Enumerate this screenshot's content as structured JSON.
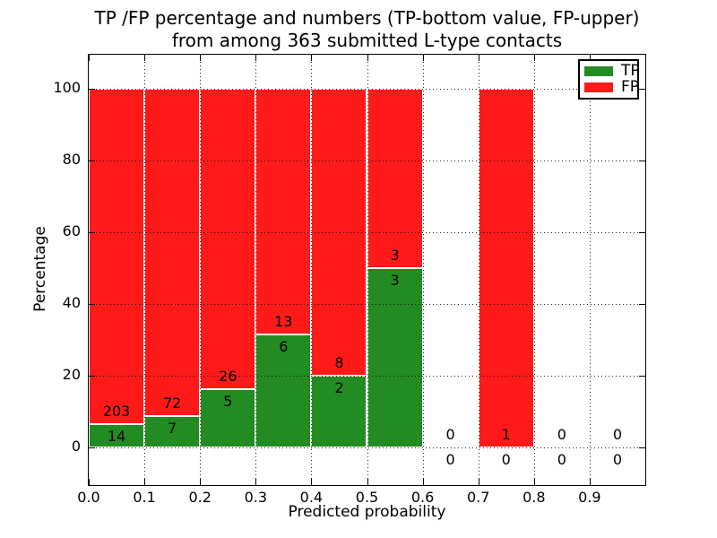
{
  "title": {
    "line1": "TP /FP percentage and numbers (TP-bottom value, FP-upper)",
    "line2": "from among 363 submitted L-type contacts"
  },
  "axes": {
    "xlabel": "Predicted probability",
    "ylabel": "Percentage",
    "xtick_labels": [
      "0.0",
      "0.1",
      "0.2",
      "0.3",
      "0.4",
      "0.5",
      "0.6",
      "0.7",
      "0.8",
      "0.9"
    ],
    "ytick_values": [
      0,
      20,
      40,
      60,
      80,
      100
    ]
  },
  "legend": {
    "items": [
      {
        "label": "TP",
        "color": "#228b22"
      },
      {
        "label": "FP",
        "color": "#ff1a1a"
      }
    ]
  },
  "chart_data": {
    "type": "bar",
    "stacked": true,
    "normalized_to_percent": true,
    "title": "TP /FP percentage and numbers (TP-bottom value, FP-upper) from among 363 submitted L-type contacts",
    "xlabel": "Predicted probability",
    "ylabel": "Percentage",
    "xlim": [
      0.0,
      1.0
    ],
    "ylim": [
      -10,
      110
    ],
    "grid": true,
    "grid_style": "dotted-black-above-bars",
    "legend_position": "upper right",
    "bin_width": 0.1,
    "total_contacts": 363,
    "colors": {
      "tp": "#228b22",
      "fp": "#ff1a1a",
      "bar_edge": "#ffffff"
    },
    "bins": [
      {
        "x0": 0.0,
        "x1": 0.1,
        "tp": 14,
        "fp": 203
      },
      {
        "x0": 0.1,
        "x1": 0.2,
        "tp": 7,
        "fp": 72
      },
      {
        "x0": 0.2,
        "x1": 0.3,
        "tp": 5,
        "fp": 26
      },
      {
        "x0": 0.3,
        "x1": 0.4,
        "tp": 6,
        "fp": 13
      },
      {
        "x0": 0.4,
        "x1": 0.5,
        "tp": 2,
        "fp": 8
      },
      {
        "x0": 0.5,
        "x1": 0.6,
        "tp": 3,
        "fp": 3
      },
      {
        "x0": 0.6,
        "x1": 0.7,
        "tp": 0,
        "fp": 0
      },
      {
        "x0": 0.7,
        "x1": 0.8,
        "tp": 0,
        "fp": 1
      },
      {
        "x0": 0.8,
        "x1": 0.9,
        "tp": 0,
        "fp": 0
      },
      {
        "x0": 0.9,
        "x1": 1.0,
        "tp": 0,
        "fp": 0
      }
    ],
    "series": [
      {
        "name": "TP",
        "counts": [
          14,
          7,
          5,
          6,
          2,
          3,
          0,
          0,
          0,
          0
        ]
      },
      {
        "name": "FP",
        "counts": [
          203,
          72,
          26,
          13,
          8,
          3,
          0,
          1,
          0,
          0
        ]
      }
    ]
  }
}
